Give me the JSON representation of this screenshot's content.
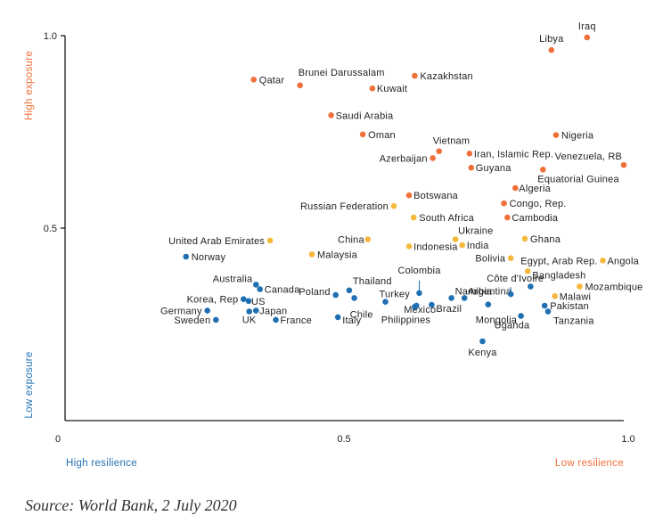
{
  "chart_data": {
    "type": "scatter",
    "title": "",
    "xlim": [
      0,
      1.0
    ],
    "ylim": [
      0,
      1.0
    ],
    "x_ticks": [
      "0",
      "0.5",
      "1.0"
    ],
    "y_ticks": [
      "1.0",
      "0.5"
    ],
    "y_high_label": "High exposure",
    "y_low_label": "Low exposure",
    "x_low_label": "High resilience",
    "x_high_label": "Low resilience",
    "grid": false,
    "colors": {
      "high": "#f0703a",
      "medium": "#f5b83d",
      "low": "#1f6fb2"
    },
    "points": [
      {
        "name": "Iraq",
        "x": 0.935,
        "y": 1.0,
        "group": "high"
      },
      {
        "name": "Libya",
        "x": 0.872,
        "y": 0.967,
        "group": "high"
      },
      {
        "name": "Qatar",
        "x": 0.345,
        "y": 0.89,
        "group": "high"
      },
      {
        "name": "Brunei Darussalam",
        "x": 0.427,
        "y": 0.875,
        "group": "high"
      },
      {
        "name": "Kazakhstan",
        "x": 0.63,
        "y": 0.9,
        "group": "high"
      },
      {
        "name": "Kuwait",
        "x": 0.555,
        "y": 0.867,
        "group": "high"
      },
      {
        "name": "Saudi Arabia",
        "x": 0.482,
        "y": 0.797,
        "group": "high"
      },
      {
        "name": "Oman",
        "x": 0.538,
        "y": 0.747,
        "group": "high"
      },
      {
        "name": "Nigeria",
        "x": 0.88,
        "y": 0.745,
        "group": "high"
      },
      {
        "name": "Vietnam",
        "x": 0.673,
        "y": 0.703,
        "group": "high"
      },
      {
        "name": "Iran, Islamic Rep.",
        "x": 0.727,
        "y": 0.697,
        "group": "high"
      },
      {
        "name": "Azerbaijan",
        "x": 0.662,
        "y": 0.685,
        "group": "high"
      },
      {
        "name": "Venezuela, RB",
        "x": 1.0,
        "y": 0.667,
        "group": "high"
      },
      {
        "name": "Guyana",
        "x": 0.73,
        "y": 0.66,
        "group": "high"
      },
      {
        "name": "Equatorial Guinea",
        "x": 0.857,
        "y": 0.655,
        "group": "high"
      },
      {
        "name": "Algeria",
        "x": 0.808,
        "y": 0.607,
        "group": "high"
      },
      {
        "name": "Botswana",
        "x": 0.62,
        "y": 0.588,
        "group": "high"
      },
      {
        "name": "Congo, Rep.",
        "x": 0.788,
        "y": 0.567,
        "group": "high"
      },
      {
        "name": "Cambodia",
        "x": 0.794,
        "y": 0.53,
        "group": "high"
      },
      {
        "name": "Russian Federation",
        "x": 0.593,
        "y": 0.56,
        "group": "medium"
      },
      {
        "name": "South Africa",
        "x": 0.628,
        "y": 0.53,
        "group": "medium"
      },
      {
        "name": "China",
        "x": 0.547,
        "y": 0.473,
        "group": "medium"
      },
      {
        "name": "United Arab Emirates",
        "x": 0.374,
        "y": 0.47,
        "group": "medium"
      },
      {
        "name": "Ukraine",
        "x": 0.702,
        "y": 0.473,
        "group": "medium"
      },
      {
        "name": "India",
        "x": 0.714,
        "y": 0.458,
        "group": "medium"
      },
      {
        "name": "Indonesia",
        "x": 0.62,
        "y": 0.455,
        "group": "medium"
      },
      {
        "name": "Ghana",
        "x": 0.825,
        "y": 0.475,
        "group": "medium"
      },
      {
        "name": "Malaysia",
        "x": 0.448,
        "y": 0.434,
        "group": "medium"
      },
      {
        "name": "Bolivia",
        "x": 0.8,
        "y": 0.424,
        "group": "medium"
      },
      {
        "name": "Angola",
        "x": 0.963,
        "y": 0.418,
        "group": "medium"
      },
      {
        "name": "Egypt, Arab Rep.",
        "x": 0.83,
        "y": 0.39,
        "group": "medium"
      },
      {
        "name": "Mozambique",
        "x": 0.922,
        "y": 0.35,
        "group": "medium"
      },
      {
        "name": "Malawi",
        "x": 0.878,
        "y": 0.325,
        "group": "medium"
      },
      {
        "name": "Norway",
        "x": 0.225,
        "y": 0.428,
        "group": "low"
      },
      {
        "name": "Australia",
        "x": 0.349,
        "y": 0.355,
        "group": "low"
      },
      {
        "name": "Canada",
        "x": 0.356,
        "y": 0.343,
        "group": "low"
      },
      {
        "name": "Korea, Rep",
        "x": 0.327,
        "y": 0.317,
        "group": "low"
      },
      {
        "name": "US",
        "x": 0.336,
        "y": 0.312,
        "group": "low"
      },
      {
        "name": "Germany",
        "x": 0.263,
        "y": 0.287,
        "group": "low"
      },
      {
        "name": "Japan",
        "x": 0.349,
        "y": 0.287,
        "group": "low"
      },
      {
        "name": "UK",
        "x": 0.337,
        "y": 0.285,
        "group": "low"
      },
      {
        "name": "Sweden",
        "x": 0.278,
        "y": 0.263,
        "group": "low"
      },
      {
        "name": "France",
        "x": 0.384,
        "y": 0.263,
        "group": "low"
      },
      {
        "name": "Poland",
        "x": 0.49,
        "y": 0.328,
        "group": "low"
      },
      {
        "name": "Thailand",
        "x": 0.514,
        "y": 0.34,
        "group": "low"
      },
      {
        "name": "Chile",
        "x": 0.523,
        "y": 0.32,
        "group": "low"
      },
      {
        "name": "Italy",
        "x": 0.494,
        "y": 0.27,
        "group": "low"
      },
      {
        "name": "Turkey",
        "x": 0.578,
        "y": 0.31,
        "group": "low"
      },
      {
        "name": "Colombia",
        "x": 0.638,
        "y": 0.333,
        "group": "low"
      },
      {
        "name": "Mexico",
        "x": 0.633,
        "y": 0.3,
        "group": "low"
      },
      {
        "name": "Philippines",
        "x": 0.63,
        "y": 0.297,
        "group": "low"
      },
      {
        "name": "Namibia",
        "x": 0.695,
        "y": 0.32,
        "group": "low"
      },
      {
        "name": "Argentina",
        "x": 0.718,
        "y": 0.32,
        "group": "low"
      },
      {
        "name": "Brazil",
        "x": 0.66,
        "y": 0.302,
        "group": "low"
      },
      {
        "name": "Côte d'Ivoire",
        "x": 0.8,
        "y": 0.33,
        "group": "low"
      },
      {
        "name": "Bangladesh",
        "x": 0.835,
        "y": 0.35,
        "group": "low"
      },
      {
        "name": "Mongolia",
        "x": 0.76,
        "y": 0.303,
        "group": "low"
      },
      {
        "name": "Uganda",
        "x": 0.818,
        "y": 0.273,
        "group": "low"
      },
      {
        "name": "Pakistan",
        "x": 0.86,
        "y": 0.3,
        "group": "low"
      },
      {
        "name": "Tanzania",
        "x": 0.866,
        "y": 0.285,
        "group": "low"
      },
      {
        "name": "Kenya",
        "x": 0.75,
        "y": 0.207,
        "group": "low"
      }
    ]
  },
  "source_text": "Source: World Bank, 2 July 2020"
}
